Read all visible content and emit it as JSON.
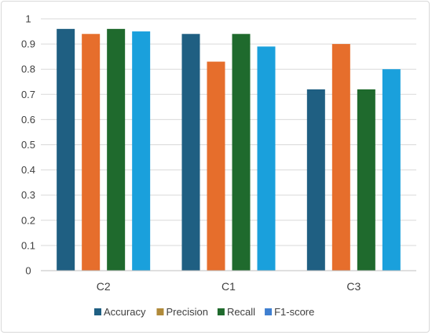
{
  "chart_data": {
    "type": "bar",
    "title": "",
    "xlabel": "",
    "ylabel": "",
    "categories": [
      "C2",
      "C1",
      "C3"
    ],
    "series": [
      {
        "name": "Accuracy",
        "color": "#1f5f82",
        "values": [
          0.96,
          0.94,
          0.72
        ]
      },
      {
        "name": "Precision",
        "color": "#e66e2c",
        "values": [
          0.94,
          0.83,
          0.9
        ]
      },
      {
        "name": "Recall",
        "color": "#1f6a2d",
        "values": [
          0.96,
          0.94,
          0.72
        ]
      },
      {
        "name": "F1-score",
        "color": "#1aa0dc",
        "values": [
          0.95,
          0.89,
          0.8
        ]
      }
    ],
    "ylim": [
      0,
      1
    ],
    "yticks": [
      "0",
      "0.1",
      "0.2",
      "0.3",
      "0.4",
      "0.5",
      "0.6",
      "0.7",
      "0.8",
      "0.9",
      "1"
    ],
    "grid": true,
    "legend_position": "bottom",
    "legend_swatch_colors": [
      "#1f5f82",
      "#b08a3a",
      "#1f6a2d",
      "#3f7fd0"
    ]
  }
}
